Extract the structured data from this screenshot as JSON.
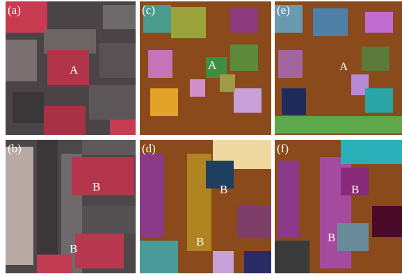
{
  "panels": [
    {
      "label": "(a)",
      "markers": [
        "A"
      ]
    },
    {
      "label": "(b)",
      "markers": [
        "B",
        "B"
      ]
    },
    {
      "label": "(c)",
      "markers": [
        "A"
      ]
    },
    {
      "label": "(d)",
      "markers": [
        "B",
        "B"
      ]
    },
    {
      "label": "(e)",
      "markers": [
        "A"
      ]
    },
    {
      "label": "(f)",
      "markers": [
        "B",
        "B"
      ]
    }
  ]
}
